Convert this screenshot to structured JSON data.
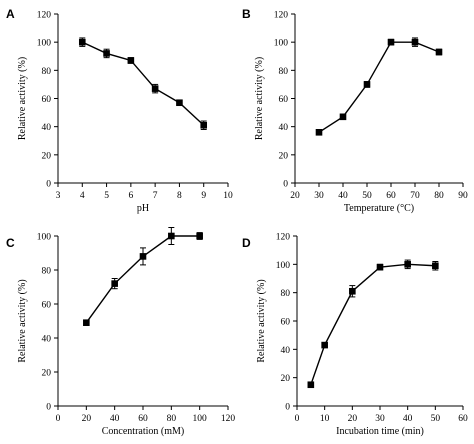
{
  "chart_data": [
    {
      "panel": "A",
      "type": "line",
      "xlabel": "pH",
      "ylabel": "Relative activity (%)",
      "xlim": [
        3,
        10
      ],
      "ylim": [
        0,
        120
      ],
      "xticks": [
        3,
        4,
        5,
        6,
        7,
        8,
        9,
        10
      ],
      "yticks": [
        0,
        20,
        40,
        60,
        80,
        100,
        120
      ],
      "grid": false,
      "marker": "square",
      "x": [
        4,
        5,
        6,
        7,
        8,
        9
      ],
      "y": [
        100,
        92,
        87,
        67,
        57,
        41
      ],
      "error": [
        3,
        3,
        2,
        3,
        1,
        3
      ]
    },
    {
      "panel": "B",
      "type": "line",
      "xlabel": "Temperature (°C)",
      "ylabel": "Relative activity (%)",
      "xlim": [
        20,
        90
      ],
      "ylim": [
        0,
        120
      ],
      "xticks": [
        20,
        30,
        40,
        50,
        60,
        70,
        80,
        90
      ],
      "yticks": [
        0,
        20,
        40,
        60,
        80,
        100,
        120
      ],
      "grid": false,
      "marker": "square",
      "x": [
        30,
        40,
        50,
        60,
        70,
        80
      ],
      "y": [
        36,
        47,
        70,
        100,
        100,
        93
      ],
      "error": [
        1,
        1,
        2,
        2,
        3,
        2
      ]
    },
    {
      "panel": "C",
      "type": "line",
      "xlabel": "Concentration (mM)",
      "ylabel": "Relative activity (%)",
      "xlim": [
        0,
        120
      ],
      "ylim": [
        0,
        100
      ],
      "xticks": [
        0,
        20,
        40,
        60,
        80,
        100,
        120
      ],
      "yticks": [
        0,
        20,
        40,
        60,
        80,
        100
      ],
      "grid": false,
      "marker": "square",
      "x": [
        20,
        40,
        60,
        80,
        100
      ],
      "y": [
        49,
        72,
        88,
        100,
        100
      ],
      "error": [
        1,
        3,
        5,
        5,
        2
      ]
    },
    {
      "panel": "D",
      "type": "line",
      "xlabel": "Incubation time (min)",
      "ylabel": "Relative activity (%)",
      "xlim": [
        0,
        60
      ],
      "ylim": [
        0,
        120
      ],
      "xticks": [
        0,
        10,
        20,
        30,
        40,
        50,
        60
      ],
      "yticks": [
        0,
        20,
        40,
        60,
        80,
        100,
        120
      ],
      "grid": false,
      "marker": "square",
      "x": [
        5,
        10,
        20,
        30,
        40,
        50
      ],
      "y": [
        15,
        43,
        81,
        98,
        100,
        99
      ],
      "error": [
        1,
        1,
        4,
        2,
        3,
        3
      ]
    }
  ]
}
